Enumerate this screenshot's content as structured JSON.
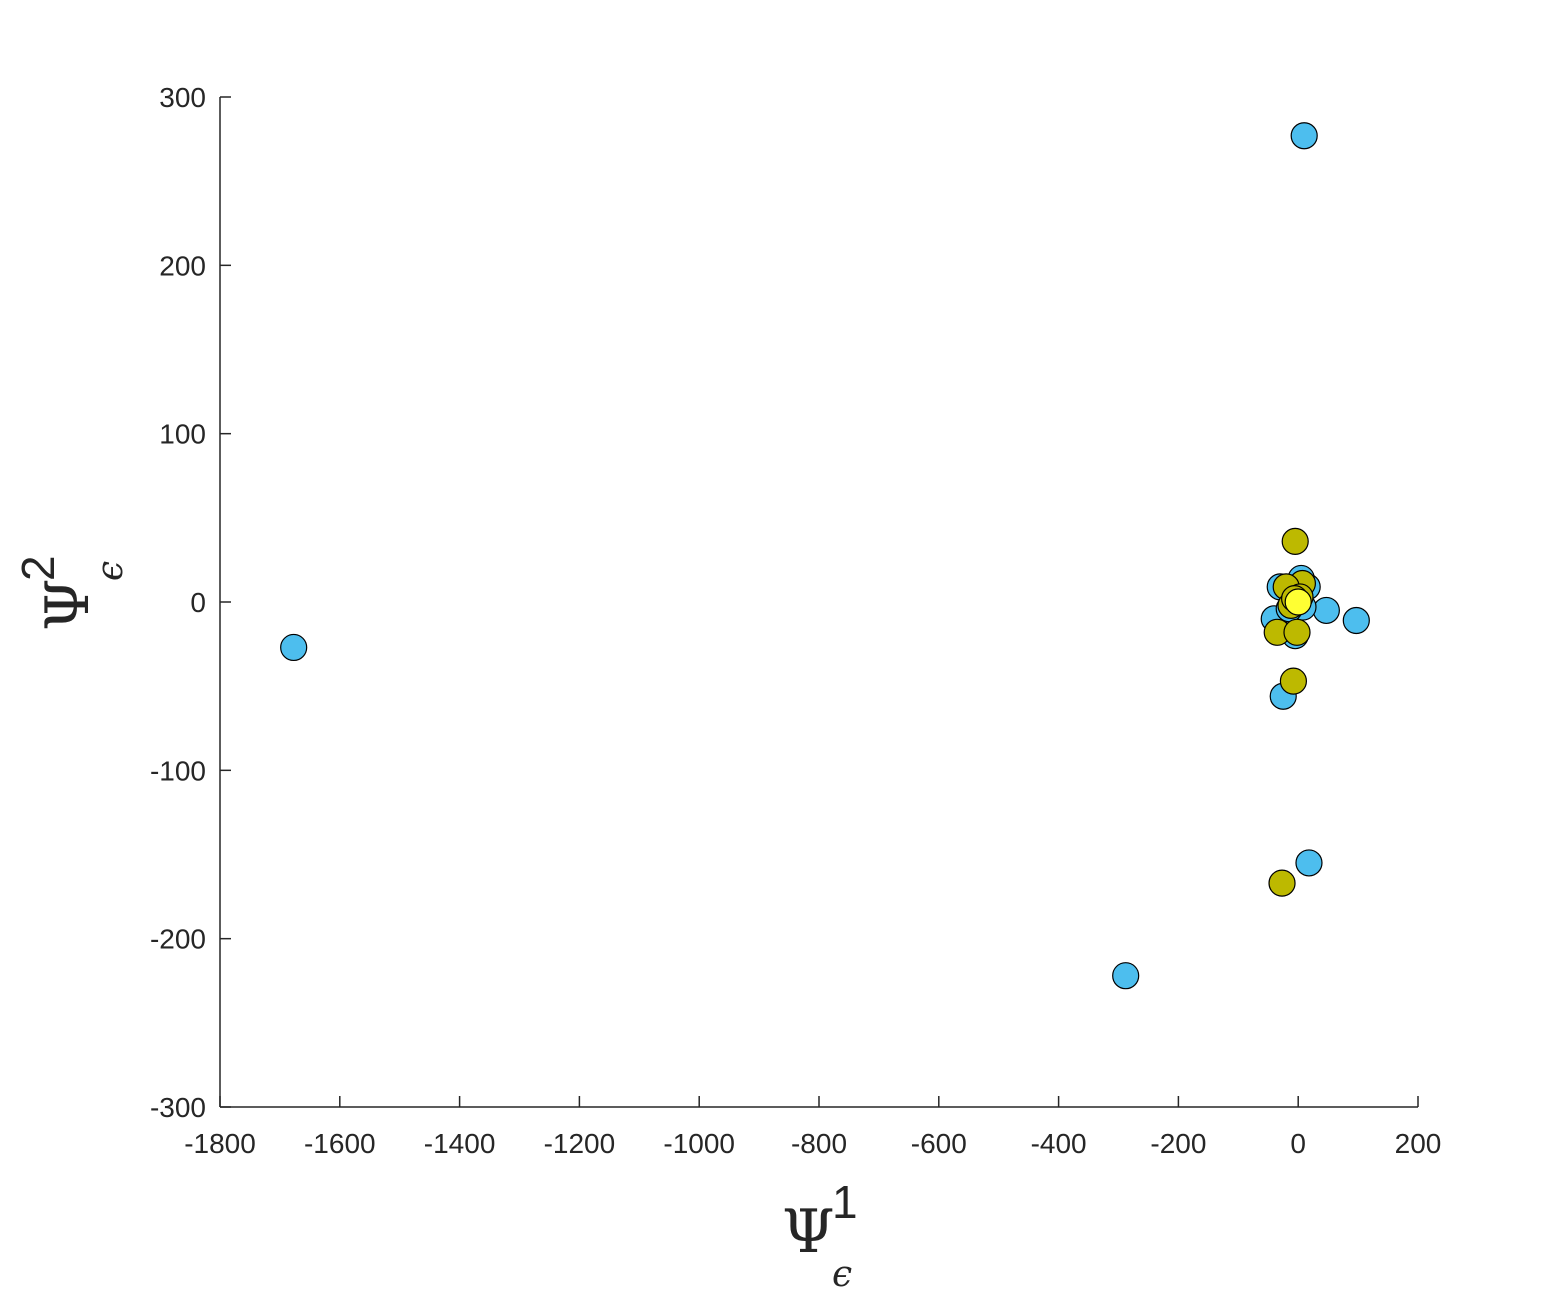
{
  "chart_data": {
    "type": "scatter",
    "title": "",
    "xlabel": {
      "symbol": "Ψ",
      "superscript": "1",
      "subscript": "ϵ"
    },
    "ylabel": {
      "symbol": "Ψ",
      "superscript": "2",
      "subscript": "ϵ"
    },
    "xlim": [
      -1800,
      200
    ],
    "ylim": [
      -300,
      300
    ],
    "xticks": [
      -1800,
      -1600,
      -1400,
      -1200,
      -1000,
      -800,
      -600,
      -400,
      -200,
      0,
      200
    ],
    "yticks": [
      -300,
      -200,
      -100,
      0,
      100,
      200,
      300
    ],
    "grid": false,
    "series": [
      {
        "color": "#4DBEEE",
        "points": [
          [
            10,
            277
          ],
          [
            -1677,
            -27
          ],
          [
            -288,
            -222
          ],
          [
            18,
            -155
          ],
          [
            -25,
            -56
          ],
          [
            47,
            -5
          ],
          [
            97,
            -11
          ],
          [
            -30,
            9
          ],
          [
            15,
            9
          ],
          [
            5,
            14
          ],
          [
            -40,
            -10
          ],
          [
            -5,
            -20
          ],
          [
            -10,
            5
          ],
          [
            8,
            -3
          ],
          [
            -15,
            -4
          ],
          [
            2,
            5
          ]
        ]
      },
      {
        "color": "#BDB900",
        "points": [
          [
            -5,
            36
          ],
          [
            -27,
            -167
          ],
          [
            -8,
            -47
          ],
          [
            -35,
            -18
          ],
          [
            -2,
            -18
          ],
          [
            7,
            11
          ],
          [
            -20,
            9
          ],
          [
            -12,
            -2
          ],
          [
            3,
            3
          ],
          [
            -6,
            2
          ]
        ]
      },
      {
        "color": "#FFFF33",
        "points": [
          [
            0,
            0
          ]
        ]
      }
    ]
  }
}
